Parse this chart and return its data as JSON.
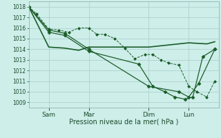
{
  "background_color": "#cdeee9",
  "grid_color": "#a8cccc",
  "line_color": "#1a5c28",
  "xlabel": "Pression niveau de la mer( hPa )",
  "ylim": [
    1008.5,
    1018.5
  ],
  "yticks": [
    1009,
    1010,
    1011,
    1012,
    1013,
    1014,
    1015,
    1016,
    1017,
    1018
  ],
  "xtick_labels": [
    "Sam",
    "Mar",
    "Dim",
    "Lun"
  ],
  "xtick_positions": [
    1,
    3,
    6,
    8
  ],
  "xlim": [
    0,
    9.5
  ],
  "series1_x": [
    0.0,
    0.4,
    1.0,
    1.5,
    2.0,
    2.5,
    3.0,
    3.4,
    3.8,
    4.3,
    4.8,
    5.3,
    5.8,
    6.2,
    6.6,
    7.0,
    7.5,
    8.0,
    8.4,
    8.9,
    9.3
  ],
  "series1_y": [
    1018.0,
    1017.3,
    1015.9,
    1015.8,
    1015.6,
    1016.0,
    1016.0,
    1015.4,
    1015.4,
    1015.0,
    1014.1,
    1013.1,
    1013.5,
    1013.5,
    1013.0,
    1012.7,
    1012.5,
    1010.5,
    1010.0,
    1009.5,
    1011.0
  ],
  "series2_x": [
    0.0,
    1.0,
    1.8,
    2.5,
    3.0,
    6.0,
    8.0,
    8.9,
    9.3
  ],
  "series2_y": [
    1018.0,
    1014.2,
    1014.1,
    1013.9,
    1014.2,
    1014.2,
    1014.6,
    1014.5,
    1014.7
  ],
  "series3_x": [
    0.0,
    1.0,
    1.8,
    3.0,
    6.0,
    7.5,
    8.0,
    8.5,
    9.3
  ],
  "series3_y": [
    1018.0,
    1015.8,
    1015.5,
    1014.0,
    1010.5,
    1010.0,
    1009.5,
    1010.8,
    1014.0
  ],
  "series4_x": [
    0.0,
    1.0,
    1.8,
    3.0,
    5.5,
    6.2,
    6.8,
    7.3,
    7.8,
    8.2,
    8.7,
    9.3
  ],
  "series4_y": [
    1018.0,
    1015.6,
    1015.3,
    1013.8,
    1012.6,
    1010.5,
    1010.0,
    1009.5,
    1009.3,
    1009.5,
    1013.3,
    1014.0
  ]
}
